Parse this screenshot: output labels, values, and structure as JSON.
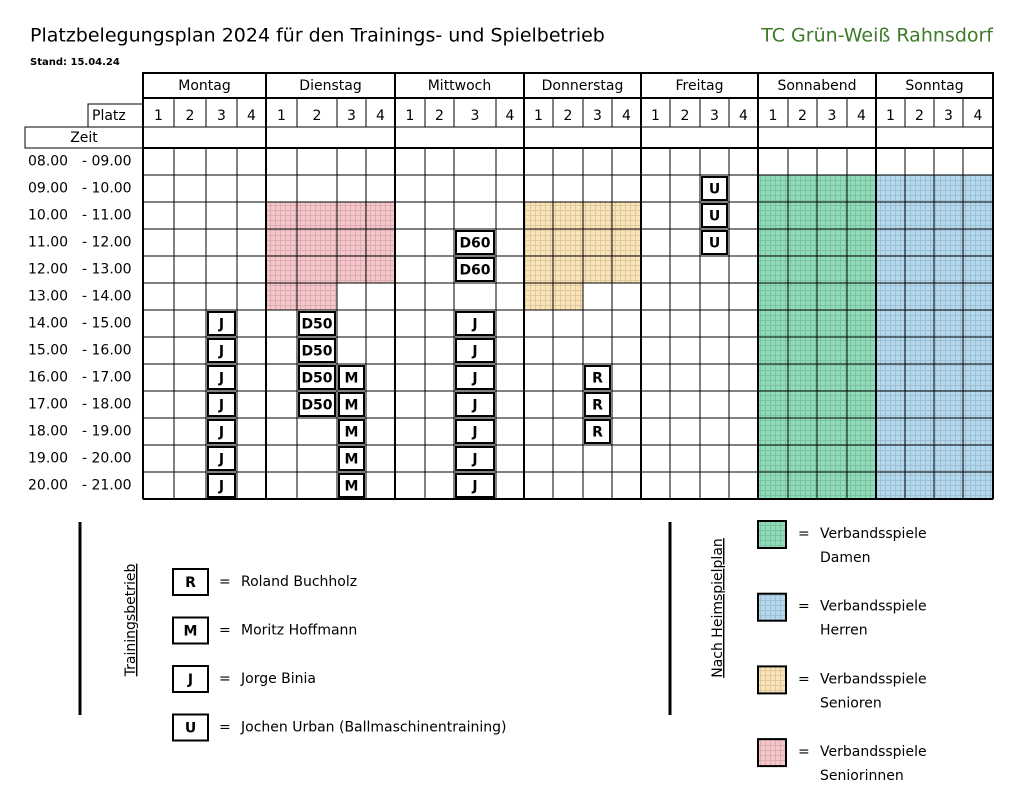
{
  "header": {
    "title": "Platzbelegungsplan 2024 für den Trainings- und Spielbetrieb",
    "club": "TC Grün-Weiß Rahnsdorf",
    "stand": "Stand: 15.04.24"
  },
  "table": {
    "days": [
      "Montag",
      "Dienstag",
      "Mittwoch",
      "Donnerstag",
      "Freitag",
      "Sonnabend",
      "Sonntag"
    ],
    "platz_label": "Platz",
    "courts": [
      "1",
      "2",
      "3",
      "4"
    ],
    "zeit_label": "Zeit",
    "rows": [
      {
        "start": "08.00",
        "end": "- 09.00",
        "cells": [
          null,
          null,
          null,
          null,
          null,
          null,
          null,
          null,
          null,
          null,
          null,
          null,
          null,
          null,
          null,
          null,
          null,
          null,
          null,
          null,
          null,
          null,
          null,
          null,
          null,
          null,
          null,
          null
        ]
      },
      {
        "start": "09.00",
        "end": "- 10.00",
        "cells": [
          null,
          null,
          null,
          null,
          null,
          null,
          null,
          null,
          null,
          null,
          null,
          null,
          null,
          null,
          null,
          null,
          null,
          null,
          "U",
          null,
          {
            "fill": "#8fdcb8"
          },
          {
            "fill": "#8fdcb8"
          },
          {
            "fill": "#8fdcb8"
          },
          {
            "fill": "#8fdcb8"
          },
          {
            "fill": "#b4d8ee"
          },
          {
            "fill": "#b4d8ee"
          },
          {
            "fill": "#b4d8ee"
          },
          {
            "fill": "#b4d8ee"
          }
        ]
      },
      {
        "start": "10.00",
        "end": "- 11.00",
        "cells": [
          null,
          null,
          null,
          null,
          {
            "fill": "#f6c6cb"
          },
          {
            "fill": "#f6c6cb"
          },
          {
            "fill": "#f6c6cb"
          },
          {
            "fill": "#f6c6cb"
          },
          null,
          null,
          null,
          null,
          {
            "fill": "#fbe5b8"
          },
          {
            "fill": "#fbe5b8"
          },
          {
            "fill": "#fbe5b8"
          },
          {
            "fill": "#fbe5b8"
          },
          null,
          null,
          "U",
          null,
          {
            "fill": "#8fdcb8"
          },
          {
            "fill": "#8fdcb8"
          },
          {
            "fill": "#8fdcb8"
          },
          {
            "fill": "#8fdcb8"
          },
          {
            "fill": "#b4d8ee"
          },
          {
            "fill": "#b4d8ee"
          },
          {
            "fill": "#b4d8ee"
          },
          {
            "fill": "#b4d8ee"
          }
        ]
      },
      {
        "start": "11.00",
        "end": "- 12.00",
        "cells": [
          null,
          null,
          null,
          null,
          {
            "fill": "#f6c6cb"
          },
          {
            "fill": "#f6c6cb"
          },
          {
            "fill": "#f6c6cb"
          },
          {
            "fill": "#f6c6cb"
          },
          null,
          null,
          "D60",
          null,
          {
            "fill": "#fbe5b8"
          },
          {
            "fill": "#fbe5b8"
          },
          {
            "fill": "#fbe5b8"
          },
          {
            "fill": "#fbe5b8"
          },
          null,
          null,
          "U",
          null,
          {
            "fill": "#8fdcb8"
          },
          {
            "fill": "#8fdcb8"
          },
          {
            "fill": "#8fdcb8"
          },
          {
            "fill": "#8fdcb8"
          },
          {
            "fill": "#b4d8ee"
          },
          {
            "fill": "#b4d8ee"
          },
          {
            "fill": "#b4d8ee"
          },
          {
            "fill": "#b4d8ee"
          }
        ]
      },
      {
        "start": "12.00",
        "end": "- 13.00",
        "cells": [
          null,
          null,
          null,
          null,
          {
            "fill": "#f6c6cb"
          },
          {
            "fill": "#f6c6cb"
          },
          {
            "fill": "#f6c6cb"
          },
          {
            "fill": "#f6c6cb"
          },
          null,
          null,
          "D60",
          null,
          {
            "fill": "#fbe5b8"
          },
          {
            "fill": "#fbe5b8"
          },
          {
            "fill": "#fbe5b8"
          },
          {
            "fill": "#fbe5b8"
          },
          null,
          null,
          null,
          null,
          {
            "fill": "#8fdcb8"
          },
          {
            "fill": "#8fdcb8"
          },
          {
            "fill": "#8fdcb8"
          },
          {
            "fill": "#8fdcb8"
          },
          {
            "fill": "#b4d8ee"
          },
          {
            "fill": "#b4d8ee"
          },
          {
            "fill": "#b4d8ee"
          },
          {
            "fill": "#b4d8ee"
          }
        ]
      },
      {
        "start": "13.00",
        "end": "- 14.00",
        "cells": [
          null,
          null,
          null,
          null,
          {
            "fill": "#f6c6cb"
          },
          {
            "fill": "#f6c6cb"
          },
          null,
          null,
          null,
          null,
          null,
          null,
          {
            "fill": "#fbe5b8"
          },
          {
            "fill": "#fbe5b8"
          },
          null,
          null,
          null,
          null,
          null,
          null,
          {
            "fill": "#8fdcb8"
          },
          {
            "fill": "#8fdcb8"
          },
          {
            "fill": "#8fdcb8"
          },
          {
            "fill": "#8fdcb8"
          },
          {
            "fill": "#b4d8ee"
          },
          {
            "fill": "#b4d8ee"
          },
          {
            "fill": "#b4d8ee"
          },
          {
            "fill": "#b4d8ee"
          }
        ]
      },
      {
        "start": "14.00",
        "end": "- 15.00",
        "cells": [
          null,
          null,
          "J",
          null,
          null,
          "D50",
          null,
          null,
          null,
          null,
          "J",
          null,
          null,
          null,
          null,
          null,
          null,
          null,
          null,
          null,
          {
            "fill": "#8fdcb8"
          },
          {
            "fill": "#8fdcb8"
          },
          {
            "fill": "#8fdcb8"
          },
          {
            "fill": "#8fdcb8"
          },
          {
            "fill": "#b4d8ee"
          },
          {
            "fill": "#b4d8ee"
          },
          {
            "fill": "#b4d8ee"
          },
          {
            "fill": "#b4d8ee"
          }
        ]
      },
      {
        "start": "15.00",
        "end": "- 16.00",
        "cells": [
          null,
          null,
          "J",
          null,
          null,
          "D50",
          null,
          null,
          null,
          null,
          "J",
          null,
          null,
          null,
          null,
          null,
          null,
          null,
          null,
          null,
          {
            "fill": "#8fdcb8"
          },
          {
            "fill": "#8fdcb8"
          },
          {
            "fill": "#8fdcb8"
          },
          {
            "fill": "#8fdcb8"
          },
          {
            "fill": "#b4d8ee"
          },
          {
            "fill": "#b4d8ee"
          },
          {
            "fill": "#b4d8ee"
          },
          {
            "fill": "#b4d8ee"
          }
        ]
      },
      {
        "start": "16.00",
        "end": "- 17.00",
        "cells": [
          null,
          null,
          "J",
          null,
          null,
          "D50",
          "M",
          null,
          null,
          null,
          "J",
          null,
          null,
          null,
          "R",
          null,
          null,
          null,
          null,
          null,
          {
            "fill": "#8fdcb8"
          },
          {
            "fill": "#8fdcb8"
          },
          {
            "fill": "#8fdcb8"
          },
          {
            "fill": "#8fdcb8"
          },
          {
            "fill": "#b4d8ee"
          },
          {
            "fill": "#b4d8ee"
          },
          {
            "fill": "#b4d8ee"
          },
          {
            "fill": "#b4d8ee"
          }
        ]
      },
      {
        "start": "17.00",
        "end": "- 18.00",
        "cells": [
          null,
          null,
          "J",
          null,
          null,
          "D50",
          "M",
          null,
          null,
          null,
          "J",
          null,
          null,
          null,
          "R",
          null,
          null,
          null,
          null,
          null,
          {
            "fill": "#8fdcb8"
          },
          {
            "fill": "#8fdcb8"
          },
          {
            "fill": "#8fdcb8"
          },
          {
            "fill": "#8fdcb8"
          },
          {
            "fill": "#b4d8ee"
          },
          {
            "fill": "#b4d8ee"
          },
          {
            "fill": "#b4d8ee"
          },
          {
            "fill": "#b4d8ee"
          }
        ]
      },
      {
        "start": "18.00",
        "end": "- 19.00",
        "cells": [
          null,
          null,
          "J",
          null,
          null,
          null,
          "M",
          null,
          null,
          null,
          "J",
          null,
          null,
          null,
          "R",
          null,
          null,
          null,
          null,
          null,
          {
            "fill": "#8fdcb8"
          },
          {
            "fill": "#8fdcb8"
          },
          {
            "fill": "#8fdcb8"
          },
          {
            "fill": "#8fdcb8"
          },
          {
            "fill": "#b4d8ee"
          },
          {
            "fill": "#b4d8ee"
          },
          {
            "fill": "#b4d8ee"
          },
          {
            "fill": "#b4d8ee"
          }
        ]
      },
      {
        "start": "19.00",
        "end": "- 20.00",
        "cells": [
          null,
          null,
          "J",
          null,
          null,
          null,
          "M",
          null,
          null,
          null,
          "J",
          null,
          null,
          null,
          null,
          null,
          null,
          null,
          null,
          null,
          {
            "fill": "#8fdcb8"
          },
          {
            "fill": "#8fdcb8"
          },
          {
            "fill": "#8fdcb8"
          },
          {
            "fill": "#8fdcb8"
          },
          {
            "fill": "#b4d8ee"
          },
          {
            "fill": "#b4d8ee"
          },
          {
            "fill": "#b4d8ee"
          },
          {
            "fill": "#b4d8ee"
          }
        ]
      },
      {
        "start": "20.00",
        "end": "- 21.00",
        "cells": [
          null,
          null,
          "J",
          null,
          null,
          null,
          "M",
          null,
          null,
          null,
          "J",
          null,
          null,
          null,
          null,
          null,
          null,
          null,
          null,
          null,
          {
            "fill": "#8fdcb8"
          },
          {
            "fill": "#8fdcb8"
          },
          {
            "fill": "#8fdcb8"
          },
          {
            "fill": "#8fdcb8"
          },
          {
            "fill": "#b4d8ee"
          },
          {
            "fill": "#b4d8ee"
          },
          {
            "fill": "#b4d8ee"
          },
          {
            "fill": "#b4d8ee"
          }
        ]
      }
    ]
  },
  "legend": {
    "training_title": "Trainingsbetrieb",
    "training": [
      {
        "code": "R",
        "eq": "=",
        "name": "Roland Buchholz"
      },
      {
        "code": "M",
        "eq": "=",
        "name": "Moritz Hoffmann"
      },
      {
        "code": "J",
        "eq": "=",
        "name": "Jorge Binia"
      },
      {
        "code": "U",
        "eq": "=",
        "name": "Jochen Urban (Ballmaschinentraining)"
      }
    ],
    "games_title": "Nach Heimspielplan",
    "games": [
      {
        "color": "#8fdcb8",
        "eq": "=",
        "lines": [
          "Verbandsspiele",
          "Damen"
        ]
      },
      {
        "color": "#b4d8ee",
        "eq": "=",
        "lines": [
          "Verbandsspiele",
          "Herren"
        ]
      },
      {
        "color": "#fbe5b8",
        "eq": "=",
        "lines": [
          "Verbandsspiele",
          "Senioren"
        ]
      },
      {
        "color": "#f6c6cb",
        "eq": "=",
        "lines": [
          "Verbandsspiele",
          "Seniorinnen"
        ]
      }
    ]
  }
}
